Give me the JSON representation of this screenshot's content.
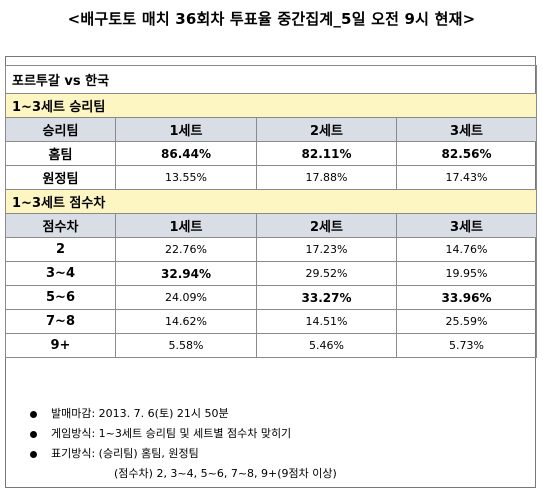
{
  "title": "<배구토토 매치 36회차 투표율 중간집계_5일 오전 9시 현재>",
  "match": "포르투갈 vs 한국",
  "section1": {
    "title": "1~3세트 승리팀",
    "headers": [
      "승리팀",
      "1세트",
      "2세트",
      "3세트"
    ],
    "rows": [
      {
        "label": "홈팀",
        "values": [
          "86.44%",
          "82.11%",
          "82.56%"
        ]
      },
      {
        "label": "원정팀",
        "values": [
          "13.55%",
          "17.88%",
          "17.43%"
        ]
      }
    ]
  },
  "section2": {
    "title": "1~3세트 점수차",
    "headers": [
      "점수차",
      "1세트",
      "2세트",
      "3세트"
    ],
    "rows": [
      {
        "label": "2",
        "values": [
          "22.76%",
          "17.23%",
          "14.76%"
        ]
      },
      {
        "label": "3~4",
        "values": [
          "32.94%",
          "29.52%",
          "19.95%"
        ]
      },
      {
        "label": "5~6",
        "values": [
          "24.09%",
          "33.27%",
          "33.96%"
        ]
      },
      {
        "label": "7~8",
        "values": [
          "14.62%",
          "14.51%",
          "25.59%"
        ]
      },
      {
        "label": "9+",
        "values": [
          "5.58%",
          "5.46%",
          "5.73%"
        ]
      }
    ]
  },
  "notes": {
    "deadline": "발매마감: 2013. 7. 6(토) 21시 50분",
    "method": "게임방식: 1~3세트 승리팀 및 세트별 점수차 맞히기",
    "notation": "표기방식: (승리팀) 홈팀, 원정팀",
    "notation_sub": "(점수차) 2, 3~4, 5~6, 7~8, 9+(9점차 이상)"
  }
}
